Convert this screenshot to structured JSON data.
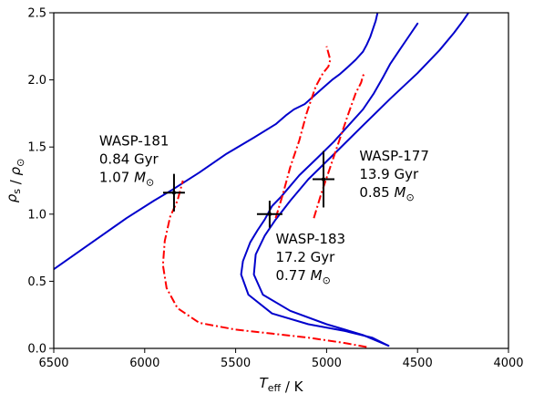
{
  "chart_data": {
    "type": "line",
    "xlabel": "T_eff / K",
    "ylabel": "ρ_s / ρ_⊙",
    "xlim": [
      6500,
      4000
    ],
    "ylim": [
      0,
      2.5
    ],
    "x_inverted": true,
    "grid": false,
    "x_ticks": [
      6500,
      6000,
      5500,
      5000,
      4500,
      4000
    ],
    "y_ticks": [
      0.0,
      0.5,
      1.0,
      1.5,
      2.0,
      2.5
    ],
    "series": [
      {
        "style": "solid",
        "color": "#0000cc",
        "x": [
          6500,
          6300,
          6100,
          5950,
          5850,
          5700,
          5550,
          5400,
          5280,
          5220,
          5180,
          5120,
          5070,
          5020,
          4970,
          4930,
          4880,
          4840,
          4800,
          4780,
          4760,
          4745,
          4730,
          4720
        ],
        "y": [
          0.59,
          0.78,
          0.97,
          1.1,
          1.18,
          1.31,
          1.45,
          1.57,
          1.67,
          1.74,
          1.78,
          1.82,
          1.88,
          1.94,
          2.0,
          2.04,
          2.1,
          2.15,
          2.21,
          2.26,
          2.32,
          2.38,
          2.44,
          2.5
        ]
      },
      {
        "style": "solid",
        "color": "#0000cc",
        "x": [
          4660,
          4750,
          4900,
          5100,
          5300,
          5430,
          5470,
          5460,
          5420,
          5380,
          5340,
          5300,
          5250,
          5150,
          5050,
          4960,
          4880,
          4800,
          4740,
          4690,
          4650,
          4600,
          4550,
          4500
        ],
        "y": [
          0.02,
          0.08,
          0.13,
          0.18,
          0.26,
          0.4,
          0.55,
          0.65,
          0.79,
          0.88,
          0.96,
          1.06,
          1.13,
          1.29,
          1.42,
          1.54,
          1.66,
          1.78,
          1.9,
          2.02,
          2.12,
          2.22,
          2.32,
          2.42
        ]
      },
      {
        "style": "solid",
        "color": "#0000cc",
        "x": [
          4660,
          4800,
          5000,
          5200,
          5350,
          5400,
          5390,
          5340,
          5280,
          5200,
          5100,
          4950,
          4800,
          4650,
          4500,
          4380,
          4300,
          4250,
          4220
        ],
        "y": [
          0.02,
          0.1,
          0.18,
          0.28,
          0.4,
          0.55,
          0.7,
          0.84,
          0.96,
          1.1,
          1.26,
          1.46,
          1.66,
          1.86,
          2.05,
          2.22,
          2.35,
          2.44,
          2.5
        ]
      },
      {
        "style": "dashdot",
        "color": "#ff0000",
        "x": [
          4780,
          4900,
          5100,
          5300,
          5500,
          5700,
          5820,
          5880,
          5900,
          5890,
          5860,
          5820,
          5800,
          5790
        ],
        "y": [
          0.01,
          0.04,
          0.08,
          0.11,
          0.14,
          0.19,
          0.3,
          0.45,
          0.62,
          0.8,
          0.98,
          1.1,
          1.2,
          1.25
        ]
      },
      {
        "style": "dashdot",
        "color": "#ff0000",
        "x": [
          5280,
          5240,
          5200,
          5150,
          5110,
          5060,
          5020,
          4990,
          4980,
          4990,
          5000
        ],
        "y": [
          0.97,
          1.15,
          1.35,
          1.55,
          1.75,
          1.95,
          2.05,
          2.1,
          2.15,
          2.2,
          2.25
        ]
      },
      {
        "style": "dashdot",
        "color": "#ff0000",
        "x": [
          5070,
          5030,
          4980,
          4930,
          4880,
          4840,
          4810,
          4800,
          4790
        ],
        "y": [
          0.97,
          1.15,
          1.35,
          1.55,
          1.75,
          1.9,
          1.98,
          2.03,
          2.05
        ]
      }
    ],
    "points": [
      {
        "name": "WASP-181",
        "x": 5839,
        "y": 1.16,
        "x_err": 60,
        "y_err": 0.14
      },
      {
        "name": "WASP-183",
        "x": 5313,
        "y": 1.0,
        "x_err": 70,
        "y_err": 0.1
      },
      {
        "name": "WASP-177",
        "x": 5017,
        "y": 1.26,
        "x_err": 60,
        "y_err": 0.21
      }
    ],
    "annotations": [
      {
        "lines": [
          "WASP-181",
          "0.84 Gyr",
          "1.07 M_⊙"
        ],
        "x": 6250,
        "y": 1.51
      },
      {
        "lines": [
          "WASP-183",
          "17.2 Gyr",
          "0.77 M_⊙"
        ],
        "x": 5280,
        "y": 0.78
      },
      {
        "lines": [
          "WASP-177",
          "13.9 Gyr",
          "0.85 M_⊙"
        ],
        "x": 4820,
        "y": 1.4
      }
    ]
  }
}
